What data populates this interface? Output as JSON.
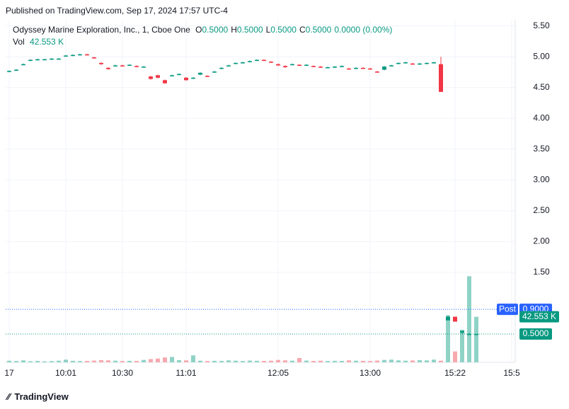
{
  "header": {
    "published": "Published on TradingView.com, Sep 17, 2024 17:57 UTC-4",
    "symbol": "Odyssey Marine Exploration, Inc., 1, Cboe One",
    "ohlc": [
      {
        "key": "O",
        "text": "0.5000"
      },
      {
        "key": "H",
        "text": "0.5000"
      },
      {
        "key": "L",
        "text": "0.5000"
      },
      {
        "key": "C",
        "text": "0.5000"
      }
    ],
    "change": "0.0000 (0.00%)",
    "volume_title": "Vol",
    "volume_text": "42.553 K"
  },
  "footer": {
    "brand": "TradingView"
  },
  "chart_data": {
    "type": "candlestick",
    "ylim": [
      0.04,
      5.6
    ],
    "yticks": [
      {
        "value": 1.5,
        "label": "1.50"
      },
      {
        "value": 2,
        "label": "2.00"
      },
      {
        "value": 2.5,
        "label": "2.50"
      },
      {
        "value": 3,
        "label": "3.00"
      },
      {
        "value": 3.5,
        "label": "3.50"
      },
      {
        "value": 4,
        "label": "4.00"
      },
      {
        "value": 4.5,
        "label": "4.50"
      },
      {
        "value": 5,
        "label": "5.00"
      },
      {
        "value": 5.5,
        "label": "5.50"
      }
    ],
    "xlim": [
      -0.5,
      71.5
    ],
    "xticks": [
      {
        "value": 0,
        "label": "17"
      },
      {
        "value": 8,
        "label": "10:01"
      },
      {
        "value": 16,
        "label": "10:30"
      },
      {
        "value": 25,
        "label": "11:01"
      },
      {
        "value": 38,
        "label": "12:05"
      },
      {
        "value": 51,
        "label": "13:00"
      },
      {
        "value": 63,
        "label": "15:22"
      },
      {
        "value": 71,
        "label": "15:5"
      }
    ],
    "grid": true,
    "up_color": "#089981",
    "down_color": "#f23645",
    "up_volume_color": "#8fd3c6",
    "down_volume_color": "#f7a9ae",
    "open": [
      4.76,
      4.78,
      4.87,
      4.94,
      4.95,
      4.96,
      4.96,
      4.97,
      5.01,
      5.02,
      5.03,
      5.04,
      4.99,
      4.9,
      4.82,
      4.85,
      4.86,
      4.86,
      4.85,
      4.84,
      4.68,
      4.7,
      4.62,
      4.69,
      4.71,
      4.66,
      4.65,
      4.71,
      4.69,
      4.75,
      4.81,
      4.85,
      4.89,
      4.9,
      4.92,
      4.94,
      4.95,
      4.92,
      4.88,
      4.85,
      4.87,
      4.87,
      4.86,
      4.85,
      4.84,
      4.83,
      4.83,
      4.84,
      4.81,
      4.81,
      4.82,
      4.81,
      4.76,
      4.79,
      4.85,
      4.89,
      4.9,
      4.89,
      4.88,
      4.89,
      4.9,
      4.88,
      0.72,
      0.78,
      0.52,
      0.5,
      0.5
    ],
    "high": [
      4.78,
      4.8,
      4.89,
      4.96,
      4.97,
      4.97,
      4.98,
      4.98,
      5.03,
      5.04,
      5.05,
      5.05,
      5.0,
      4.91,
      4.83,
      4.87,
      4.87,
      4.88,
      4.86,
      4.85,
      4.69,
      4.71,
      4.63,
      4.71,
      4.73,
      4.67,
      4.67,
      4.75,
      4.7,
      4.77,
      4.83,
      4.87,
      4.91,
      4.92,
      4.94,
      4.96,
      4.96,
      4.93,
      4.89,
      4.86,
      4.89,
      4.88,
      4.88,
      4.86,
      4.85,
      4.84,
      4.85,
      4.86,
      4.82,
      4.83,
      4.83,
      4.82,
      4.77,
      4.85,
      4.87,
      4.91,
      4.92,
      4.9,
      4.9,
      4.91,
      4.92,
      5.0,
      0.8,
      0.78,
      0.55,
      0.52,
      0.5
    ],
    "low": [
      4.75,
      4.77,
      4.86,
      4.93,
      4.94,
      4.95,
      4.95,
      4.96,
      5.0,
      5.01,
      5.02,
      5.02,
      4.97,
      4.87,
      4.79,
      4.84,
      4.84,
      4.85,
      4.83,
      4.83,
      4.63,
      4.65,
      4.56,
      4.68,
      4.7,
      4.61,
      4.64,
      4.7,
      4.67,
      4.74,
      4.8,
      4.84,
      4.88,
      4.89,
      4.91,
      4.93,
      4.93,
      4.9,
      4.85,
      4.82,
      4.86,
      4.85,
      4.85,
      4.83,
      4.82,
      4.82,
      4.82,
      4.83,
      4.79,
      4.8,
      4.8,
      4.79,
      4.74,
      4.78,
      4.84,
      4.88,
      4.89,
      4.87,
      4.87,
      4.88,
      4.89,
      4.43,
      0.72,
      0.7,
      0.5,
      0.5,
      0.5
    ],
    "close": [
      4.77,
      4.79,
      4.88,
      4.95,
      4.96,
      4.96,
      4.97,
      4.97,
      5.02,
      5.03,
      5.04,
      5.03,
      4.98,
      4.88,
      4.8,
      4.86,
      4.85,
      4.87,
      4.84,
      4.84,
      4.64,
      4.66,
      4.57,
      4.7,
      4.72,
      4.62,
      4.66,
      4.74,
      4.68,
      4.76,
      4.82,
      4.86,
      4.9,
      4.91,
      4.93,
      4.95,
      4.94,
      4.91,
      4.86,
      4.83,
      4.88,
      4.86,
      4.87,
      4.84,
      4.83,
      4.83,
      4.84,
      4.85,
      4.8,
      4.82,
      4.81,
      4.8,
      4.75,
      4.84,
      4.86,
      4.9,
      4.91,
      4.88,
      4.89,
      4.9,
      4.91,
      4.43,
      0.78,
      0.7,
      0.55,
      0.5,
      0.5
    ],
    "volume": [
      1500,
      1200,
      1800,
      1000,
      1300,
      900,
      1100,
      1500,
      2500,
      1400,
      1200,
      1300,
      1600,
      2000,
      1800,
      1500,
      1200,
      1400,
      1300,
      2200,
      3000,
      3500,
      4500,
      5000,
      2000,
      1800,
      6500,
      1500,
      1200,
      1400,
      1300,
      1800,
      1500,
      1200,
      1600,
      1400,
      1300,
      1500,
      2200,
      1800,
      1500,
      4000,
      1600,
      1300,
      1500,
      1200,
      1400,
      1300,
      1800,
      1500,
      1400,
      1200,
      1600,
      2200,
      2500,
      1800,
      1500,
      1700,
      2000,
      1800,
      2500,
      1500,
      43900,
      10100,
      30400,
      80400,
      42553
    ],
    "volume_lim": [
      0,
      320000
    ],
    "price_lines": [
      {
        "label": "Post",
        "value": 0.9,
        "value_label": "0.9000",
        "color": "#2962ff"
      },
      {
        "value": 0.5,
        "value_label": "0.5000",
        "color": "#089981"
      }
    ],
    "volume_label": {
      "value": 42553,
      "label": "42.553 K",
      "color": "#089981"
    }
  }
}
